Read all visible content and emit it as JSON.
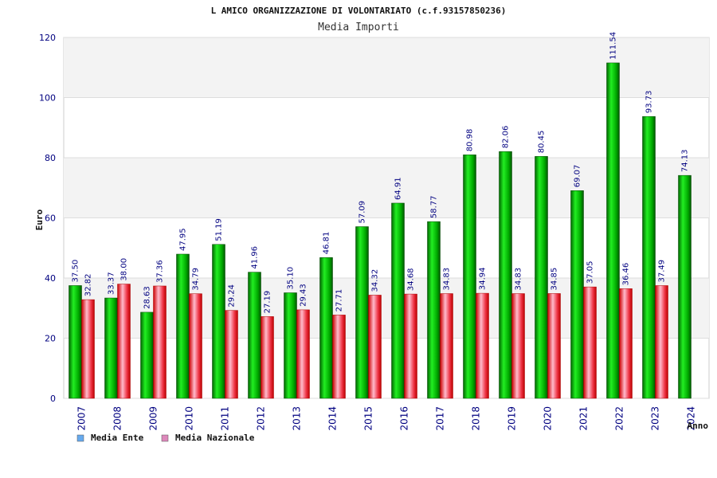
{
  "chart_data": {
    "type": "bar",
    "title": "L AMICO ORGANIZZAZIONE DI VOLONTARIATO (c.f.93157850236)",
    "subtitle": "Media Importi",
    "xlabel": "Anno",
    "ylabel": "Euro",
    "ylim": [
      0,
      120
    ],
    "yticks": [
      0,
      20,
      40,
      60,
      80,
      100,
      120
    ],
    "grid": true,
    "legend_position": "bottom-left",
    "categories": [
      "2007",
      "2008",
      "2009",
      "2010",
      "2011",
      "2012",
      "2013",
      "2014",
      "2015",
      "2016",
      "2017",
      "2018",
      "2019",
      "2020",
      "2021",
      "2022",
      "2023",
      "2024"
    ],
    "series": [
      {
        "name": "Media Ente",
        "color": "#00b000",
        "legend_color": "#66aaee",
        "values": [
          37.5,
          33.37,
          28.63,
          47.95,
          51.19,
          41.96,
          35.1,
          46.81,
          57.09,
          64.91,
          58.77,
          80.98,
          82.06,
          80.45,
          69.07,
          111.54,
          93.73,
          74.13
        ],
        "labels": [
          "37.50",
          "33.37",
          "28.63",
          "47.95",
          "51.19",
          "41.96",
          "35.10",
          "46.81",
          "57.09",
          "64.91",
          "58.77",
          "80.98",
          "82.06",
          "80.45",
          "69.07",
          "111.54",
          "93.73",
          "74.13"
        ]
      },
      {
        "name": "Media Nazionale",
        "color": "#e8202a",
        "legend_color": "#dd88bb",
        "values": [
          32.82,
          38.0,
          37.36,
          34.79,
          29.24,
          27.19,
          29.43,
          27.71,
          34.32,
          34.68,
          34.83,
          34.94,
          34.83,
          34.85,
          37.05,
          36.46,
          37.49,
          null
        ],
        "labels": [
          "32.82",
          "38.00",
          "37.36",
          "34.79",
          "29.24",
          "27.19",
          "29.43",
          "27.71",
          "34.32",
          "34.68",
          "34.83",
          "34.94",
          "34.83",
          "34.85",
          "37.05",
          "36.46",
          "37.49",
          null
        ]
      }
    ]
  }
}
